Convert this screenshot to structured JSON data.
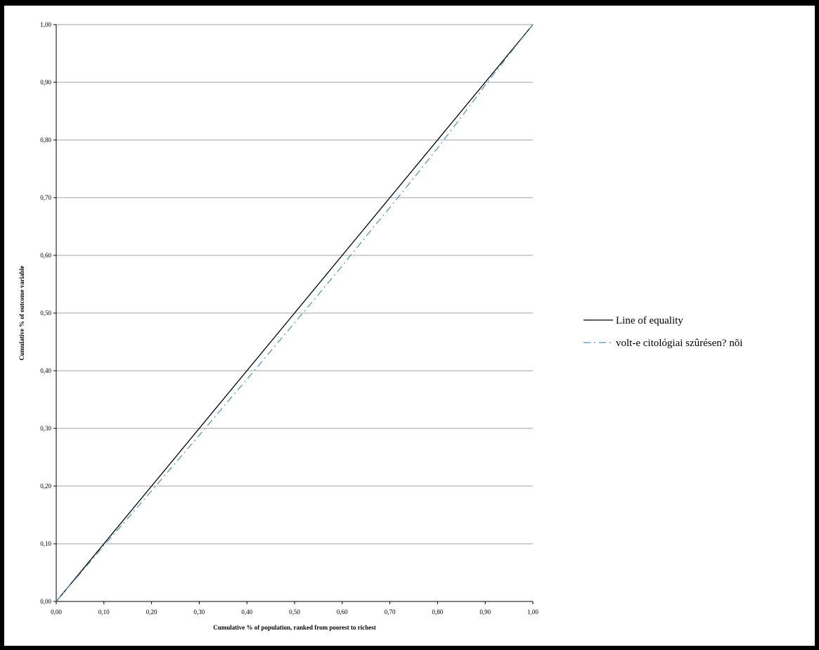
{
  "chart_data": {
    "type": "line",
    "title": "",
    "xlabel": "Cumulative % of population, ranked from poorest to richest",
    "ylabel": "Cumulative % of outcome variable",
    "xlim": [
      0,
      1
    ],
    "ylim": [
      0,
      1
    ],
    "x_ticks": [
      "0,00",
      "0,10",
      "0,20",
      "0,30",
      "0,40",
      "0,50",
      "0,60",
      "0,70",
      "0,80",
      "0,90",
      "1,00"
    ],
    "y_ticks": [
      "0,00",
      "0,10",
      "0,20",
      "0,30",
      "0,40",
      "0,50",
      "0,60",
      "0,70",
      "0,80",
      "0,90",
      "1,00"
    ],
    "grid": "horizontal",
    "legend_position": "right",
    "series": [
      {
        "name": "Line of equality",
        "style": "solid",
        "color": "#000000",
        "x": [
          0,
          1
        ],
        "y": [
          0,
          1
        ]
      },
      {
        "name": "volt-e citológiai szûrésen? nõi",
        "style": "dashdot",
        "color": "#4a90b8",
        "x": [
          0,
          0.02,
          0.05,
          0.1,
          0.15,
          0.2,
          0.25,
          0.3,
          0.35,
          0.4,
          0.45,
          0.5,
          0.55,
          0.6,
          0.65,
          0.7,
          0.75,
          0.8,
          0.85,
          0.9,
          0.95,
          1.0
        ],
        "y": [
          0,
          0.02,
          0.048,
          0.097,
          0.144,
          0.192,
          0.24,
          0.288,
          0.337,
          0.385,
          0.434,
          0.483,
          0.532,
          0.582,
          0.633,
          0.683,
          0.734,
          0.786,
          0.84,
          0.895,
          0.948,
          1.0
        ]
      }
    ]
  }
}
